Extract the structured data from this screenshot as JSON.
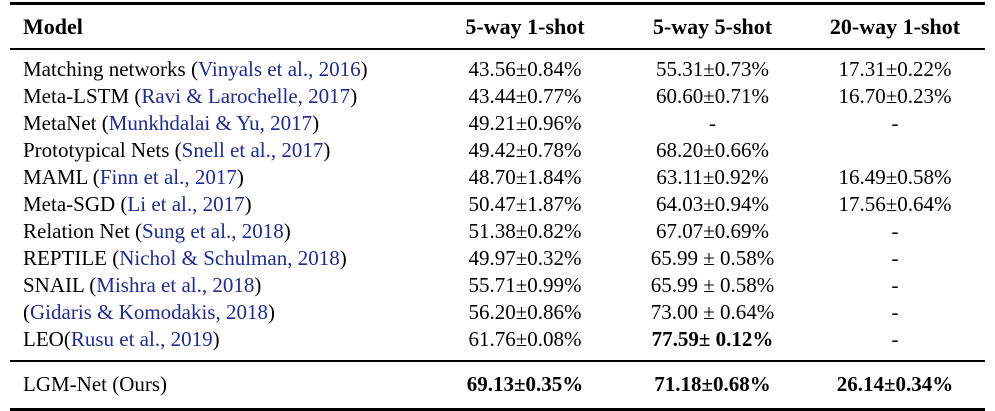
{
  "colors": {
    "citation_link": "#1f2c8a",
    "text": "#000000",
    "background": "#ffffff",
    "rule": "#000000"
  },
  "table": {
    "columns": [
      "Model",
      "5-way 1-shot",
      "5-way 5-shot",
      "20-way 1-shot"
    ],
    "rows": [
      {
        "name": [
          "Matching networks (",
          "Vinyals et al., 2016",
          ")"
        ],
        "vals": [
          "43.56±0.84%",
          "55.31±0.73%",
          "17.31±0.22%"
        ]
      },
      {
        "name": [
          "Meta-LSTM (",
          "Ravi & Larochelle, 2017",
          ")"
        ],
        "vals": [
          "43.44±0.77%",
          "60.60±0.71%",
          "16.70±0.23%"
        ]
      },
      {
        "name": [
          "MetaNet (",
          "Munkhdalai & Yu, 2017",
          ")"
        ],
        "vals": [
          "49.21±0.96%",
          "-",
          "-"
        ]
      },
      {
        "name": [
          "Prototypical Nets (",
          "Snell et al., 2017",
          ")"
        ],
        "vals": [
          "49.42±0.78%",
          "68.20±0.66%",
          ""
        ]
      },
      {
        "name": [
          "MAML (",
          "Finn et al., 2017",
          ")"
        ],
        "vals": [
          "48.70±1.84%",
          "63.11±0.92%",
          "16.49±0.58%"
        ]
      },
      {
        "name": [
          "Meta-SGD (",
          "Li et al., 2017",
          ")"
        ],
        "vals": [
          "50.47±1.87%",
          "64.03±0.94%",
          "17.56±0.64%"
        ]
      },
      {
        "name": [
          "Relation Net (",
          "Sung et al., 2018",
          ")"
        ],
        "vals": [
          "51.38±0.82%",
          "67.07±0.69%",
          "-"
        ]
      },
      {
        "name": [
          "REPTILE (",
          "Nichol & Schulman, 2018",
          ")"
        ],
        "vals": [
          "49.97±0.32%",
          "65.99 ± 0.58%",
          "-"
        ]
      },
      {
        "name": [
          "SNAIL (",
          "Mishra et al., 2018",
          ")"
        ],
        "vals": [
          "55.71±0.99%",
          "65.99 ± 0.58%",
          "-"
        ]
      },
      {
        "name": [
          "(",
          "Gidaris & Komodakis, 2018",
          ")"
        ],
        "vals": [
          "56.20±0.86%",
          "73.00 ± 0.64%",
          "-"
        ]
      },
      {
        "name": [
          "LEO(",
          "Rusu et al., 2019",
          ")"
        ],
        "vals": [
          "61.76±0.08%",
          "77.59± 0.12%",
          "-"
        ]
      }
    ],
    "final_row": {
      "name": [
        "LGM-Net (Ours)",
        "",
        ""
      ],
      "vals": [
        "69.13±0.35%",
        "71.18±0.68%",
        "26.14±0.34%"
      ]
    }
  }
}
